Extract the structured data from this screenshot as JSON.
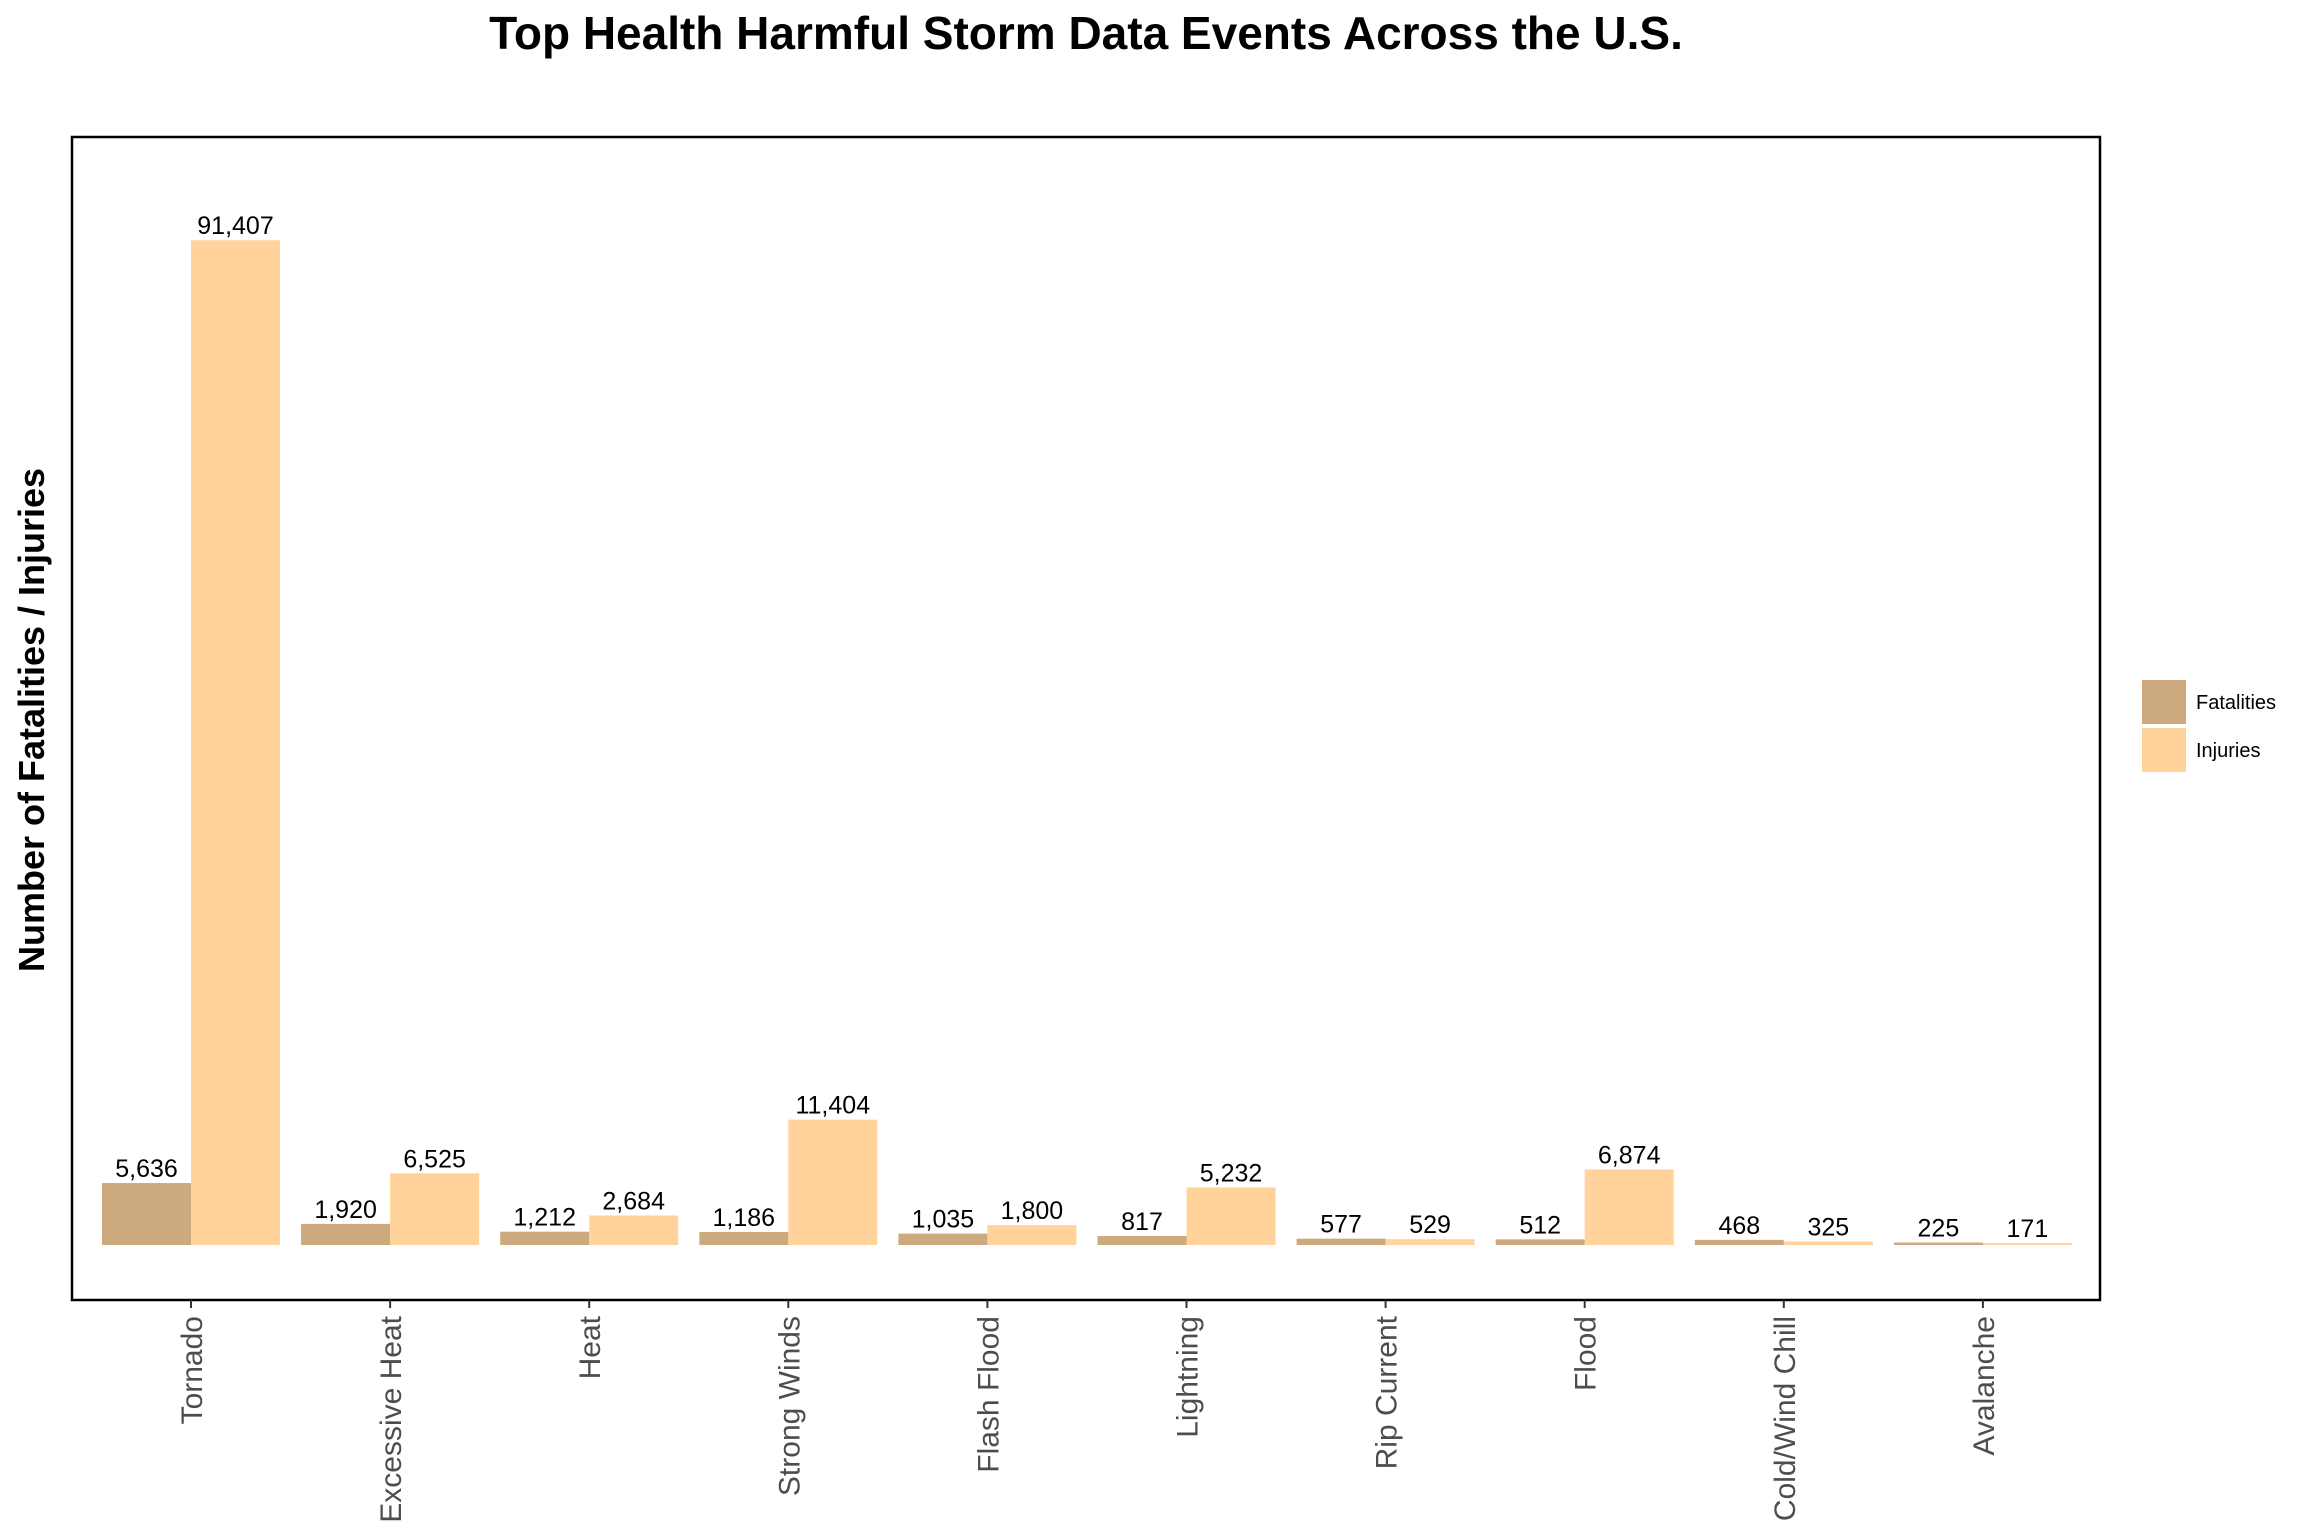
{
  "chart_data": {
    "type": "bar",
    "title": "Top Health Harmful Storm Data Events Across the U.S.",
    "xlabel": "",
    "ylabel": "Number of Fatalities / Injuries",
    "categories": [
      "Tornado",
      "Excessive Heat",
      "Heat",
      "Strong Winds",
      "Flash Flood",
      "Lightning",
      "Rip Current",
      "Flood",
      "Cold/Wind Chill",
      "Avalanche"
    ],
    "series": [
      {
        "name": "Fatalities",
        "values": [
          5636,
          1920,
          1212,
          1186,
          1035,
          817,
          577,
          512,
          468,
          225
        ],
        "labels": [
          "5,636",
          "1,920",
          "1,212",
          "1,186",
          "1,035",
          "817",
          "577",
          "512",
          "468",
          "225"
        ],
        "color": "#cdaa7d"
      },
      {
        "name": "Injuries",
        "values": [
          91407,
          6525,
          2684,
          11404,
          1800,
          5232,
          529,
          6874,
          325,
          171
        ],
        "labels": [
          "91,407",
          "6,525",
          "2,684",
          "11,404",
          "1,800",
          "5,232",
          "529",
          "6,874",
          "325",
          "171"
        ],
        "color": "#ffd39b"
      }
    ],
    "ylim": [
      0,
      95977
    ],
    "grid": false,
    "legend_position": "right",
    "y_ticks_shown": false
  }
}
